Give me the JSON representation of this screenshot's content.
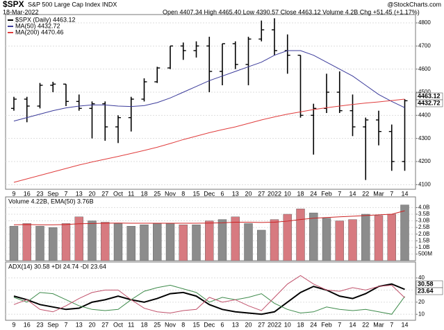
{
  "header": {
    "symbol": "$SPX",
    "name": "S&P 500 Large Cap Index INDX",
    "date": "18-Mar-2022",
    "quote": "Open 4407.34 High 4465.40 Low 4390.57 Close 4463.12 Volume 4.2B Chg +51.45 (+1.17%)",
    "source": "@StockCharts.com"
  },
  "chart_data": [
    {
      "type": "ohlc",
      "name": "$SPX (Daily) 4463.12",
      "color": "#000000",
      "categories": [
        "9",
        "16",
        "23",
        "Sep",
        "7",
        "13",
        "20",
        "27",
        "Oct",
        "11",
        "18",
        "25",
        "Nov",
        "8",
        "15",
        "Dec",
        "6",
        "13",
        "20",
        "27",
        "2022",
        "10",
        "18",
        "24",
        "Feb",
        "7",
        "14",
        "22",
        "Mar",
        "7",
        "14"
      ],
      "open": [
        4430,
        4470,
        4440,
        4530,
        4535,
        4460,
        4430,
        4450,
        4350,
        4390,
        4470,
        4545,
        4605,
        4700,
        4680,
        4700,
        4590,
        4710,
        4620,
        4730,
        4770,
        4680,
        4660,
        4400,
        4430,
        4500,
        4420,
        4350,
        4380,
        4330,
        4200
      ],
      "high": [
        4480,
        4480,
        4540,
        4545,
        4535,
        4490,
        4460,
        4460,
        4400,
        4480,
        4560,
        4610,
        4700,
        4715,
        4720,
        4740,
        4710,
        4720,
        4740,
        4810,
        4820,
        4750,
        4660,
        4450,
        4580,
        4590,
        4490,
        4390,
        4420,
        4360,
        4470
      ],
      "low": [
        4420,
        4370,
        4430,
        4500,
        4440,
        4420,
        4300,
        4290,
        4280,
        4330,
        4460,
        4540,
        4600,
        4640,
        4650,
        4500,
        4530,
        4600,
        4530,
        4720,
        4660,
        4580,
        4390,
        4230,
        4410,
        4410,
        4310,
        4120,
        4270,
        4160,
        4160
      ],
      "close": [
        4470,
        4440,
        4530,
        4535,
        4460,
        4430,
        4450,
        4350,
        4390,
        4470,
        4545,
        4605,
        4700,
        4680,
        4700,
        4590,
        4710,
        4620,
        4730,
        4770,
        4680,
        4660,
        4400,
        4430,
        4500,
        4420,
        4350,
        4380,
        4330,
        4200,
        4463
      ],
      "series": [
        {
          "name": "MA(50) 4432.72",
          "color": "#3a3a9a",
          "values": [
            4375,
            4390,
            4405,
            4420,
            4432,
            4440,
            4445,
            4445,
            4440,
            4438,
            4442,
            4455,
            4475,
            4500,
            4525,
            4550,
            4570,
            4590,
            4610,
            4630,
            4660,
            4680,
            4680,
            4660,
            4630,
            4600,
            4570,
            4530,
            4490,
            4460,
            4433
          ]
        },
        {
          "name": "MA(200) 4470.46",
          "color": "#e03c3c",
          "values": [
            4110,
            4125,
            4140,
            4155,
            4170,
            4185,
            4198,
            4210,
            4222,
            4235,
            4248,
            4262,
            4278,
            4295,
            4310,
            4325,
            4338,
            4350,
            4365,
            4380,
            4393,
            4405,
            4415,
            4425,
            4433,
            4440,
            4447,
            4453,
            4458,
            4464,
            4470
          ]
        }
      ],
      "flags": [
        "4463.12",
        "4432.72"
      ],
      "ylim": [
        4080,
        4830
      ],
      "yticks": [
        4100,
        4200,
        4300,
        4400,
        4500,
        4600,
        4700,
        4800
      ],
      "grid": true
    },
    {
      "type": "bar",
      "title": "Volume 4.22B, EMA(50) 3.76B",
      "up_color": "#8c8c8c",
      "down_color": "#d77a80",
      "values": [
        2.6,
        2.8,
        2.6,
        2.5,
        2.8,
        3.3,
        3.0,
        2.9,
        2.8,
        2.6,
        2.7,
        2.8,
        2.8,
        2.7,
        2.7,
        3.0,
        3.1,
        3.3,
        2.8,
        2.3,
        3.1,
        3.5,
        3.9,
        3.6,
        3.2,
        3.0,
        3.1,
        3.5,
        3.4,
        3.5,
        4.2
      ],
      "ema_color": "#cc2222",
      "ema_values": [
        2.7,
        2.72,
        2.7,
        2.7,
        2.72,
        2.78,
        2.8,
        2.82,
        2.83,
        2.82,
        2.82,
        2.82,
        2.82,
        2.82,
        2.82,
        2.83,
        2.85,
        2.9,
        2.9,
        2.88,
        2.9,
        2.98,
        3.1,
        3.2,
        3.25,
        3.3,
        3.35,
        3.4,
        3.45,
        3.5,
        3.76
      ],
      "ylim": [
        0,
        4.7
      ],
      "yticks": [
        {
          "value": 0.5,
          "label": "500M"
        },
        {
          "value": 1,
          "label": "1.0B"
        },
        {
          "value": 1.5,
          "label": "1.5B"
        },
        {
          "value": 2,
          "label": "2.0B"
        },
        {
          "value": 2.5,
          "label": "2.5B"
        },
        {
          "value": 3,
          "label": "3.0B"
        },
        {
          "value": 3.5,
          "label": "3.5B"
        },
        {
          "value": 4,
          "label": "4.0B"
        }
      ],
      "grid": true
    },
    {
      "type": "line",
      "title": "ADX(14) 30.58 +DI 24.74 -DI 23.64",
      "categories": [
        "9",
        "16",
        "23",
        "Sep",
        "7",
        "13",
        "20",
        "27",
        "Oct",
        "11",
        "18",
        "25",
        "Nov",
        "8",
        "15",
        "Dec",
        "6",
        "13",
        "20",
        "27",
        "2022",
        "10",
        "18",
        "24",
        "Feb",
        "7",
        "14",
        "22",
        "Mar",
        "7",
        "14"
      ],
      "series": [
        {
          "color": "#000000",
          "values": [
            25,
            22,
            18,
            16,
            14,
            15,
            20,
            22,
            25,
            22,
            20,
            23,
            27,
            28,
            25,
            18,
            14,
            12,
            11,
            10,
            12,
            20,
            28,
            33,
            30,
            25,
            23,
            27,
            33,
            35,
            30.58
          ]
        },
        {
          "color": "#3d8a4a",
          "values": [
            24,
            20,
            28,
            27,
            22,
            17,
            14,
            13,
            14,
            22,
            29,
            32,
            34,
            31,
            28,
            20,
            24,
            22,
            24,
            27,
            19,
            14,
            11,
            12,
            16,
            14,
            13,
            14,
            12,
            10,
            24.74
          ]
        },
        {
          "color": "#c0506a",
          "values": [
            18,
            22,
            14,
            12,
            17,
            23,
            28,
            30,
            30,
            22,
            15,
            12,
            11,
            13,
            14,
            24,
            20,
            22,
            17,
            13,
            24,
            35,
            42,
            35,
            30,
            29,
            32,
            30,
            33,
            34,
            23.64
          ]
        }
      ],
      "flags": [
        "30.58",
        "23.64"
      ],
      "ylim": [
        5,
        52
      ],
      "yticks": [
        10,
        20,
        30,
        40
      ],
      "grid": true
    }
  ]
}
